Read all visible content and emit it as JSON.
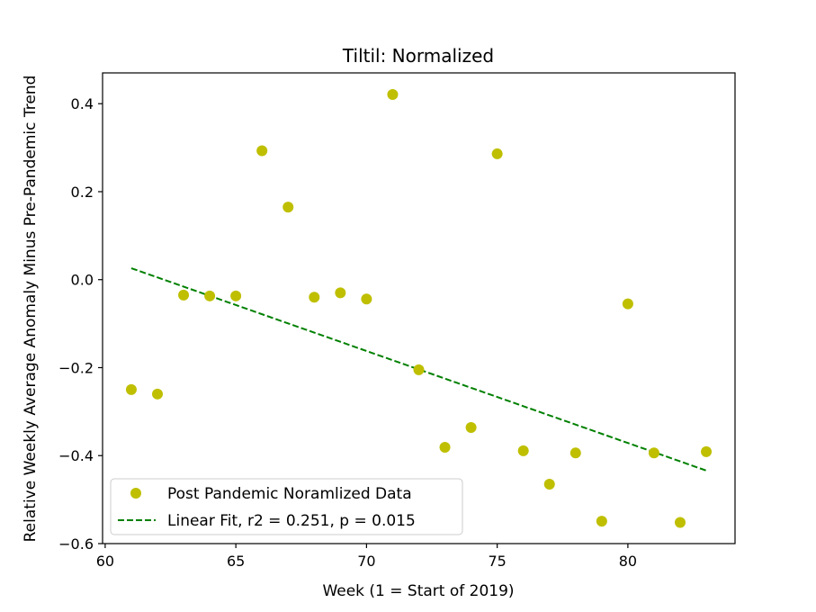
{
  "chart_data": {
    "type": "scatter",
    "title": "Tiltil: Normalized",
    "xlabel": "Week (1 = Start of 2019)",
    "ylabel": "Relative Weekly Average Anomaly Minus Pre-Pandemic Trend",
    "xlim": [
      59.9,
      84.1
    ],
    "ylim": [
      -0.6,
      0.47
    ],
    "xticks": [
      60,
      65,
      70,
      75,
      80
    ],
    "xtick_labels": [
      "60",
      "65",
      "70",
      "75",
      "80"
    ],
    "yticks": [
      -0.6,
      -0.4,
      -0.2,
      0.0,
      0.2,
      0.4
    ],
    "ytick_labels": [
      "−0.6",
      "−0.4",
      "−0.2",
      "0.0",
      "0.2",
      "0.4"
    ],
    "grid": false,
    "legend_position": "lower-left",
    "series": [
      {
        "name": "Post Pandemic Noramlized Data",
        "kind": "scatter",
        "color": "#bfbf00",
        "x": [
          61,
          62,
          63,
          64,
          65,
          66,
          67,
          68,
          69,
          70,
          71,
          72,
          73,
          74,
          75,
          76,
          77,
          78,
          79,
          80,
          81,
          82,
          83
        ],
        "y": [
          -0.25,
          -0.26,
          -0.035,
          -0.037,
          -0.037,
          0.293,
          0.165,
          -0.04,
          -0.03,
          -0.044,
          0.421,
          -0.205,
          -0.381,
          -0.336,
          0.286,
          -0.389,
          -0.465,
          -0.394,
          -0.549,
          -0.055,
          -0.394,
          -0.552,
          -0.391
        ]
      },
      {
        "name": "Linear Fit, r2 = 0.251, p = 0.015",
        "kind": "line",
        "style": "dashed",
        "color": "#008000",
        "x": [
          61,
          83
        ],
        "y": [
          0.026,
          -0.434
        ]
      }
    ]
  }
}
